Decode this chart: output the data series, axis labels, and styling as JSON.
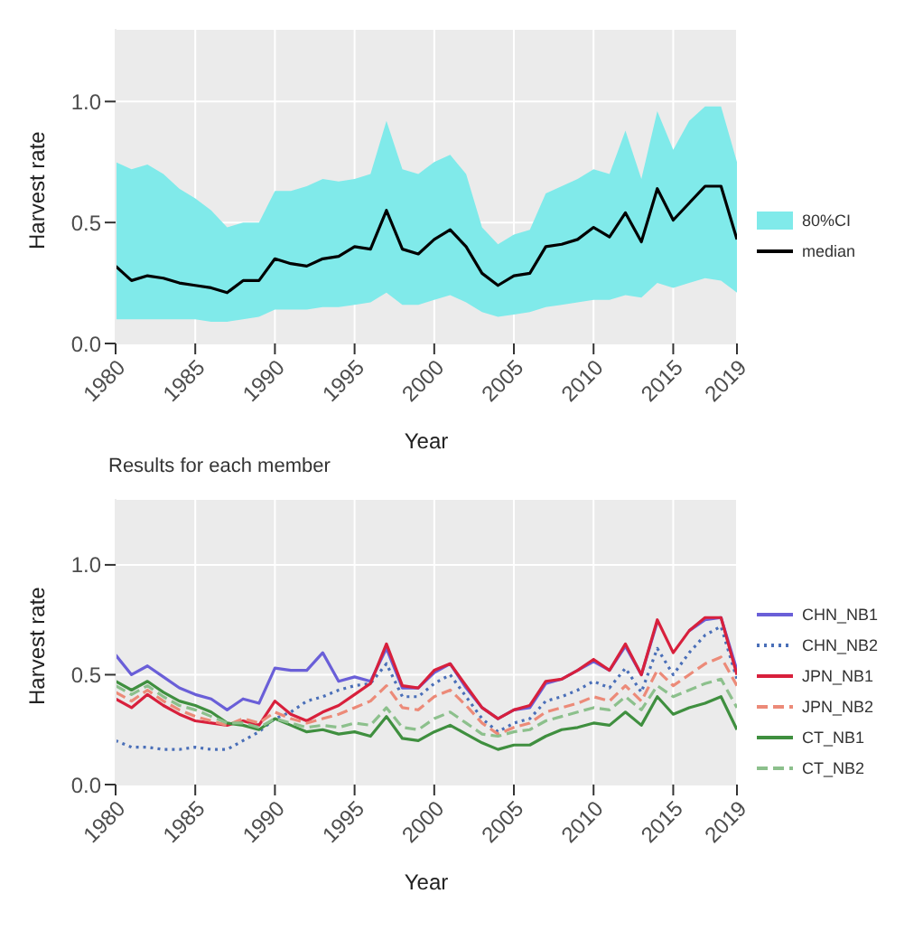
{
  "chart_data": [
    {
      "type": "line",
      "xlabel": "Year",
      "ylabel": "Harvest rate",
      "x": [
        1980,
        1981,
        1982,
        1983,
        1984,
        1985,
        1986,
        1987,
        1988,
        1989,
        1990,
        1991,
        1992,
        1993,
        1994,
        1995,
        1996,
        1997,
        1998,
        1999,
        2000,
        2001,
        2002,
        2003,
        2004,
        2005,
        2006,
        2007,
        2008,
        2009,
        2010,
        2011,
        2012,
        2013,
        2014,
        2015,
        2016,
        2017,
        2018,
        2019
      ],
      "annotations": [
        "80%CI"
      ],
      "series": [
        {
          "name": "median",
          "type": "line",
          "color": "#000000",
          "line_style": "solid",
          "values": [
            0.32,
            0.26,
            0.28,
            0.27,
            0.25,
            0.24,
            0.23,
            0.21,
            0.26,
            0.26,
            0.35,
            0.33,
            0.32,
            0.35,
            0.36,
            0.4,
            0.39,
            0.55,
            0.39,
            0.37,
            0.43,
            0.47,
            0.4,
            0.29,
            0.24,
            0.28,
            0.29,
            0.4,
            0.41,
            0.43,
            0.48,
            0.44,
            0.54,
            0.42,
            0.64,
            0.51,
            0.58,
            0.65,
            0.65,
            0.43
          ],
          "lower": [
            0.1,
            0.1,
            0.1,
            0.1,
            0.1,
            0.1,
            0.09,
            0.09,
            0.1,
            0.11,
            0.14,
            0.14,
            0.14,
            0.15,
            0.15,
            0.16,
            0.17,
            0.21,
            0.16,
            0.16,
            0.18,
            0.2,
            0.17,
            0.13,
            0.11,
            0.12,
            0.13,
            0.15,
            0.16,
            0.17,
            0.18,
            0.18,
            0.2,
            0.19,
            0.25,
            0.23,
            0.25,
            0.27,
            0.26,
            0.21
          ],
          "upper": [
            0.75,
            0.72,
            0.74,
            0.7,
            0.64,
            0.6,
            0.55,
            0.48,
            0.5,
            0.5,
            0.63,
            0.63,
            0.65,
            0.68,
            0.67,
            0.68,
            0.7,
            0.92,
            0.72,
            0.7,
            0.75,
            0.78,
            0.7,
            0.48,
            0.41,
            0.45,
            0.47,
            0.62,
            0.65,
            0.68,
            0.72,
            0.7,
            0.88,
            0.68,
            0.96,
            0.8,
            0.92,
            0.98,
            0.98,
            0.75
          ]
        }
      ],
      "xlim": [
        1980,
        2019
      ],
      "xticks": [
        1980,
        1985,
        1990,
        1995,
        2000,
        2005,
        2010,
        2015,
        2019
      ],
      "ylim": [
        0,
        1.3
      ],
      "yticks": [
        {
          "value": 0,
          "label": "0.0"
        },
        {
          "value": 0.5,
          "label": "0.5"
        },
        {
          "value": 1,
          "label": "1.0"
        }
      ],
      "grid": true,
      "legend": "right"
    },
    {
      "type": "line",
      "title": "Results for each member",
      "xlabel": "Year",
      "ylabel": "Harvest rate",
      "x": [
        1980,
        1981,
        1982,
        1983,
        1984,
        1985,
        1986,
        1987,
        1988,
        1989,
        1990,
        1991,
        1992,
        1993,
        1994,
        1995,
        1996,
        1997,
        1998,
        1999,
        2000,
        2001,
        2002,
        2003,
        2004,
        2005,
        2006,
        2007,
        2008,
        2009,
        2010,
        2011,
        2012,
        2013,
        2014,
        2015,
        2016,
        2017,
        2018,
        2019
      ],
      "series": [
        {
          "name": "CHN_NB1",
          "color": "#6a5fd8",
          "line_style": "solid",
          "values": [
            0.59,
            0.5,
            0.54,
            0.49,
            0.44,
            0.41,
            0.39,
            0.34,
            0.39,
            0.37,
            0.53,
            0.52,
            0.52,
            0.6,
            0.47,
            0.49,
            0.47,
            0.62,
            0.44,
            0.44,
            0.51,
            0.55,
            0.44,
            0.35,
            0.3,
            0.34,
            0.35,
            0.46,
            0.48,
            0.52,
            0.56,
            0.52,
            0.63,
            0.5,
            0.74,
            null,
            0.7,
            0.75,
            0.76,
            0.52
          ]
        },
        {
          "name": "CHN_NB2",
          "color": "#4a6fb8",
          "line_style": "dotted",
          "values": [
            0.2,
            0.17,
            0.17,
            0.16,
            0.16,
            0.17,
            0.16,
            0.16,
            0.2,
            0.24,
            0.3,
            0.33,
            0.38,
            0.4,
            0.43,
            0.45,
            0.46,
            0.55,
            0.4,
            0.4,
            0.46,
            0.5,
            0.4,
            0.3,
            0.24,
            0.28,
            0.3,
            0.38,
            0.4,
            0.43,
            0.47,
            0.44,
            0.53,
            0.42,
            0.62,
            0.5,
            0.6,
            0.68,
            0.72,
            0.48
          ]
        },
        {
          "name": "JPN_NB1",
          "color": "#d8203c",
          "line_style": "solid",
          "values": [
            0.39,
            0.35,
            0.41,
            0.36,
            0.32,
            0.29,
            0.28,
            0.27,
            0.29,
            0.27,
            0.38,
            0.32,
            0.29,
            0.33,
            0.36,
            0.41,
            0.46,
            0.64,
            0.45,
            0.44,
            0.52,
            0.55,
            0.45,
            0.35,
            0.3,
            0.34,
            0.36,
            0.47,
            0.48,
            0.52,
            0.57,
            0.52,
            0.64,
            0.5,
            0.75,
            0.6,
            0.7,
            0.76,
            0.76,
            0.5
          ]
        },
        {
          "name": "JPN_NB2",
          "color": "#ec8a78",
          "line_style": "dashed",
          "values": [
            0.42,
            0.38,
            0.43,
            0.38,
            0.34,
            0.31,
            0.29,
            0.27,
            0.3,
            0.28,
            0.33,
            0.3,
            0.28,
            0.3,
            0.32,
            0.35,
            0.38,
            0.45,
            0.35,
            0.34,
            0.4,
            0.43,
            0.36,
            0.28,
            0.23,
            0.26,
            0.28,
            0.33,
            0.35,
            0.37,
            0.4,
            0.38,
            0.45,
            0.38,
            0.52,
            0.45,
            0.5,
            0.55,
            0.58,
            0.45
          ]
        },
        {
          "name": "CT_NB1",
          "color": "#3f8f3f",
          "line_style": "solid",
          "values": [
            0.47,
            0.43,
            0.47,
            0.42,
            0.38,
            0.36,
            0.33,
            0.28,
            0.27,
            0.25,
            0.3,
            0.27,
            0.24,
            0.25,
            0.23,
            0.24,
            0.22,
            0.31,
            0.21,
            0.2,
            0.24,
            0.27,
            0.23,
            0.19,
            0.16,
            0.18,
            0.18,
            0.22,
            0.25,
            0.26,
            0.28,
            0.27,
            0.33,
            0.27,
            0.4,
            0.32,
            0.35,
            0.37,
            0.4,
            0.25
          ]
        },
        {
          "name": "CT_NB2",
          "color": "#8cc08c",
          "line_style": "dashed",
          "values": [
            0.45,
            0.41,
            0.45,
            0.4,
            0.36,
            0.34,
            0.31,
            0.28,
            0.28,
            0.26,
            0.3,
            0.28,
            0.26,
            0.27,
            0.26,
            0.28,
            0.27,
            0.35,
            0.26,
            0.25,
            0.3,
            0.33,
            0.28,
            0.23,
            0.22,
            0.24,
            0.25,
            0.29,
            0.31,
            0.33,
            0.35,
            0.34,
            0.4,
            0.34,
            0.45,
            0.4,
            0.43,
            0.46,
            0.48,
            0.35
          ]
        }
      ],
      "xlim": [
        1980,
        2019
      ],
      "xticks": [
        1980,
        1985,
        1990,
        1995,
        2000,
        2005,
        2010,
        2015,
        2019
      ],
      "ylim": [
        0,
        1.3
      ],
      "yticks": [
        {
          "value": 0,
          "label": "0.0"
        },
        {
          "value": 0.5,
          "label": "0.5"
        },
        {
          "value": 1,
          "label": "1.0"
        }
      ],
      "grid": true,
      "legend": "right"
    }
  ]
}
